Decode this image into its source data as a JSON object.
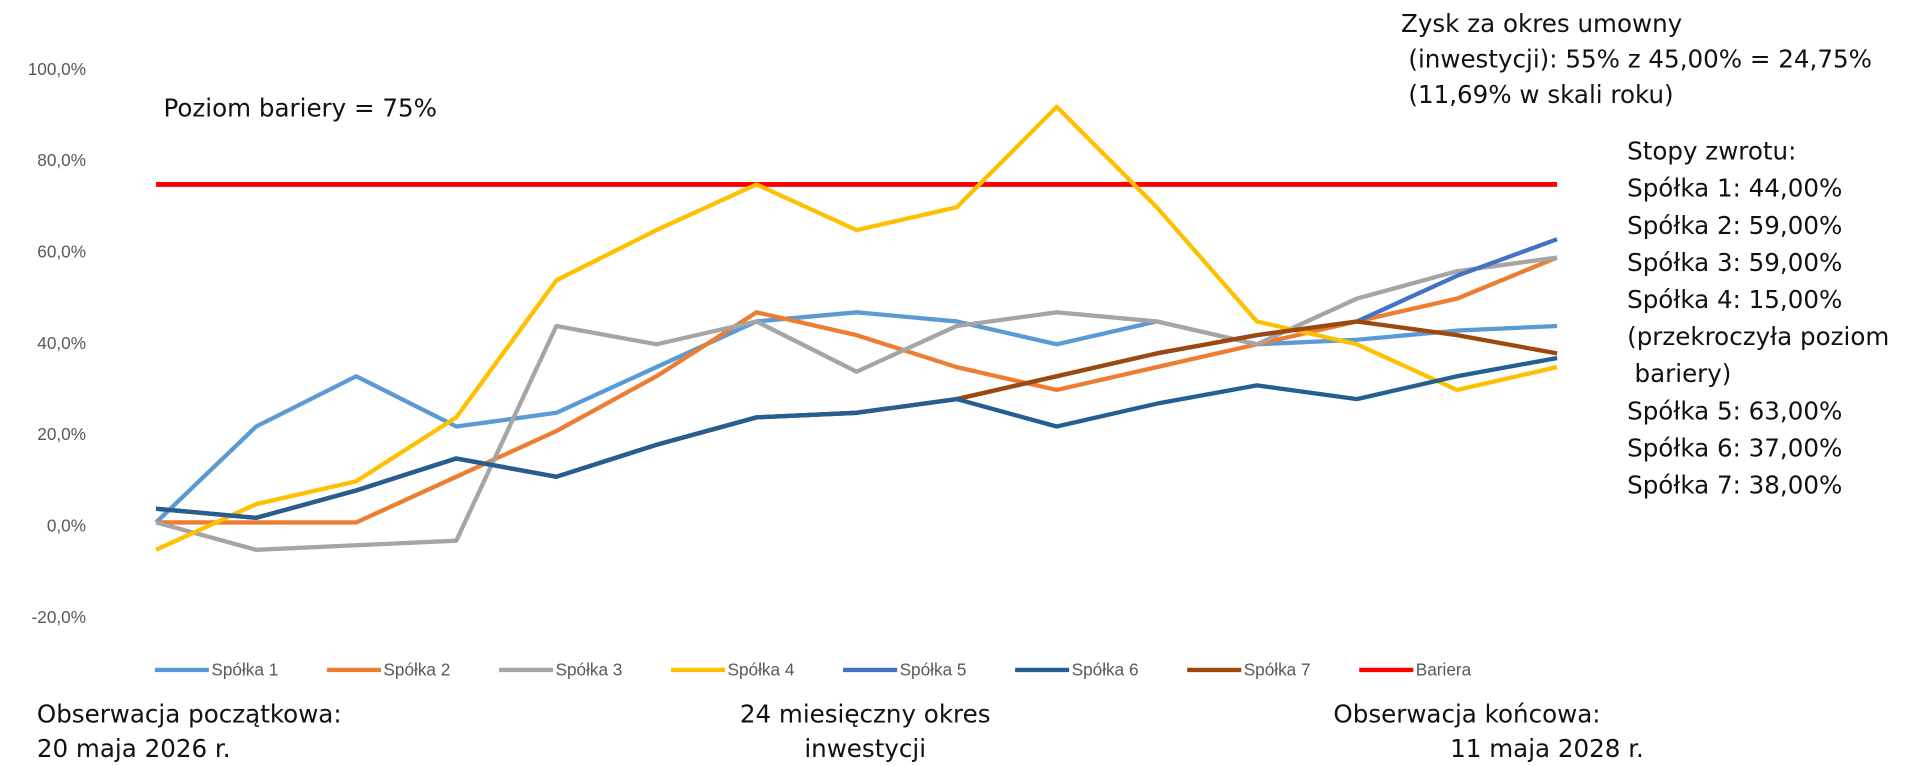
{
  "chart_data": {
    "type": "line",
    "barrier_annotation": "Poziom bariery = 75%",
    "profit_annotation": [
      "Zysk za okres umowny",
      "(inwestycji): 55% z 45,00% = 24,75%",
      "(11,69% w skali roku)"
    ],
    "returns_annotation": [
      "Stopy zwrotu:",
      "Spółka 1: 44,00%",
      "Spółka 2: 59,00%",
      "Spółka 3: 59,00%",
      "Spółka 4: 15,00%",
      "(przekroczyła poziom",
      "bariery)",
      "Spółka 5: 63,00%",
      "Spółka 6: 37,00%",
      "Spółka 7: 38,00%"
    ],
    "start_annotation": [
      "Obserwacja początkowa:",
      "20 maja 2026 r."
    ],
    "period_annotation": [
      "24 miesięczny okres",
      "inwestycji"
    ],
    "end_annotation": [
      "Obserwacja  końcowa:",
      "11 maja 2028 r."
    ],
    "categories": [
      null,
      null,
      null,
      null,
      null,
      null,
      null,
      null,
      null,
      null,
      null,
      null,
      null,
      null,
      null
    ],
    "ylim": [
      -20,
      100
    ],
    "yticks": [
      {
        "value": -20,
        "label": "-20,0%"
      },
      {
        "value": 0,
        "label": "0,0%"
      },
      {
        "value": 20,
        "label": "20,0%"
      },
      {
        "value": 40,
        "label": "40,0%"
      },
      {
        "value": 60,
        "label": "60,0%"
      },
      {
        "value": 80,
        "label": "80,0%"
      },
      {
        "value": 100,
        "label": "100,0%"
      }
    ],
    "series": [
      {
        "name": "Spółka 1",
        "color": "#5b9bd5",
        "values": [
          1,
          22,
          33,
          22,
          25,
          35,
          45,
          47,
          45,
          40,
          45,
          40,
          41,
          43,
          44
        ]
      },
      {
        "name": "Spółka 2",
        "color": "#ed7d31",
        "values": [
          1,
          1,
          1,
          11,
          21,
          33,
          47,
          42,
          35,
          30,
          35,
          40,
          45,
          50,
          59
        ]
      },
      {
        "name": "Spółka 3",
        "color": "#a5a5a5",
        "values": [
          1,
          -5,
          -4,
          -3,
          44,
          40,
          45,
          34,
          44,
          47,
          45,
          40,
          50,
          56,
          59
        ]
      },
      {
        "name": "Spółka 4",
        "color": "#ffc000",
        "values": [
          -5,
          5,
          10,
          24,
          54,
          65,
          75,
          65,
          70,
          92,
          70,
          45,
          40,
          30,
          35
        ]
      },
      {
        "name": "Spółka 5",
        "color": "#4472c4",
        "values": [
          4,
          2,
          8,
          15,
          11,
          18,
          24,
          25,
          28,
          33,
          38,
          42,
          45,
          55,
          63
        ]
      },
      {
        "name": "Spółka 6",
        "color": "#255e91",
        "values": [
          4,
          2,
          8,
          15,
          11,
          18,
          24,
          25,
          28,
          22,
          27,
          31,
          28,
          33,
          37
        ]
      },
      {
        "name": "Spółka 7",
        "color": "#9e480e",
        "values": [
          4,
          2,
          8,
          15,
          11,
          18,
          24,
          25,
          28,
          33,
          38,
          42,
          45,
          42,
          38
        ]
      },
      {
        "name": "Bariera",
        "color": "#ff0000",
        "values": [
          75,
          75,
          75,
          75,
          75,
          75,
          75,
          75,
          75,
          75,
          75,
          75,
          75,
          75,
          75
        ]
      }
    ]
  }
}
